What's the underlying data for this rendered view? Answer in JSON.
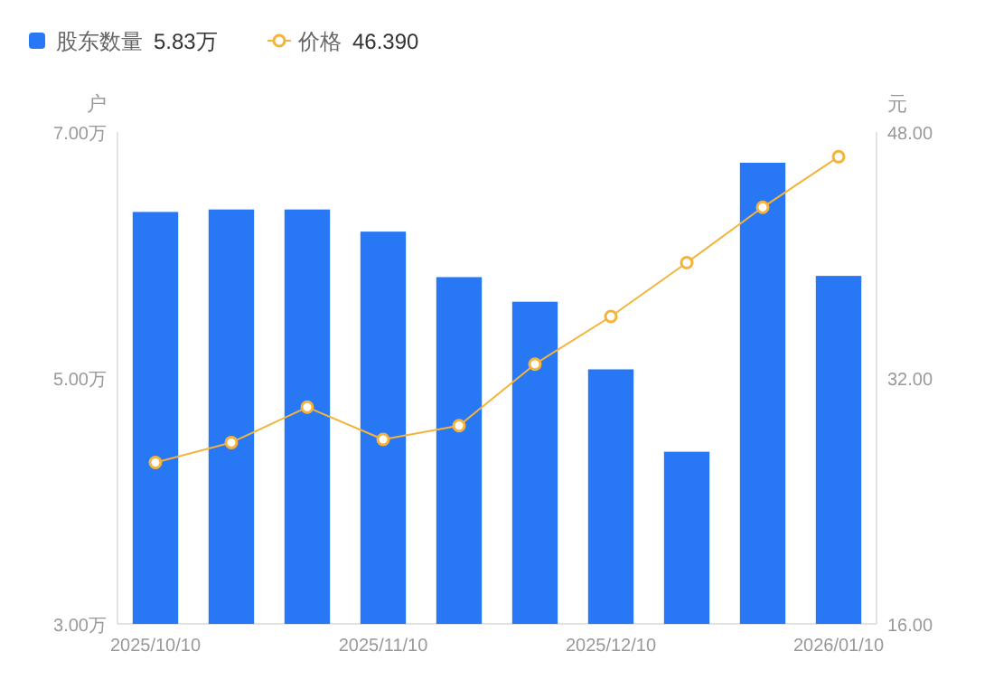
{
  "chart_data": {
    "type": "bar",
    "categories": [
      "2025/10/10",
      null,
      null,
      "2025/11/10",
      null,
      null,
      "2025/12/10",
      null,
      null,
      "2026/01/10"
    ],
    "ylabel": "户",
    "y2label": "元",
    "series": [
      {
        "name": "股东数量",
        "color": "#2878f6",
        "values": [
          6.35,
          6.37,
          6.37,
          6.19,
          5.82,
          5.62,
          5.07,
          4.4,
          6.75,
          5.83
        ]
      },
      {
        "name": "价格",
        "type": "line",
        "axis": "y2",
        "color": "#f6b33a",
        "marker": "circle",
        "values": [
          26.5,
          27.8,
          30.1,
          28.0,
          28.9,
          32.9,
          36.0,
          39.5,
          43.1,
          46.39
        ]
      }
    ],
    "annotations": [
      "5.83万",
      "46.390"
    ],
    "ylim": [
      3,
      7
    ],
    "yticks": [
      {
        "value": 3,
        "label": "3.00万"
      },
      {
        "value": 5,
        "label": "5.00万"
      },
      {
        "value": 7,
        "label": "7.00万"
      }
    ],
    "y2lim": [
      16,
      48
    ],
    "y2ticks": [
      {
        "value": 16,
        "label": "16.00"
      },
      {
        "value": 32,
        "label": "32.00"
      },
      {
        "value": 48,
        "label": "48.00"
      }
    ],
    "legend": "top left"
  }
}
